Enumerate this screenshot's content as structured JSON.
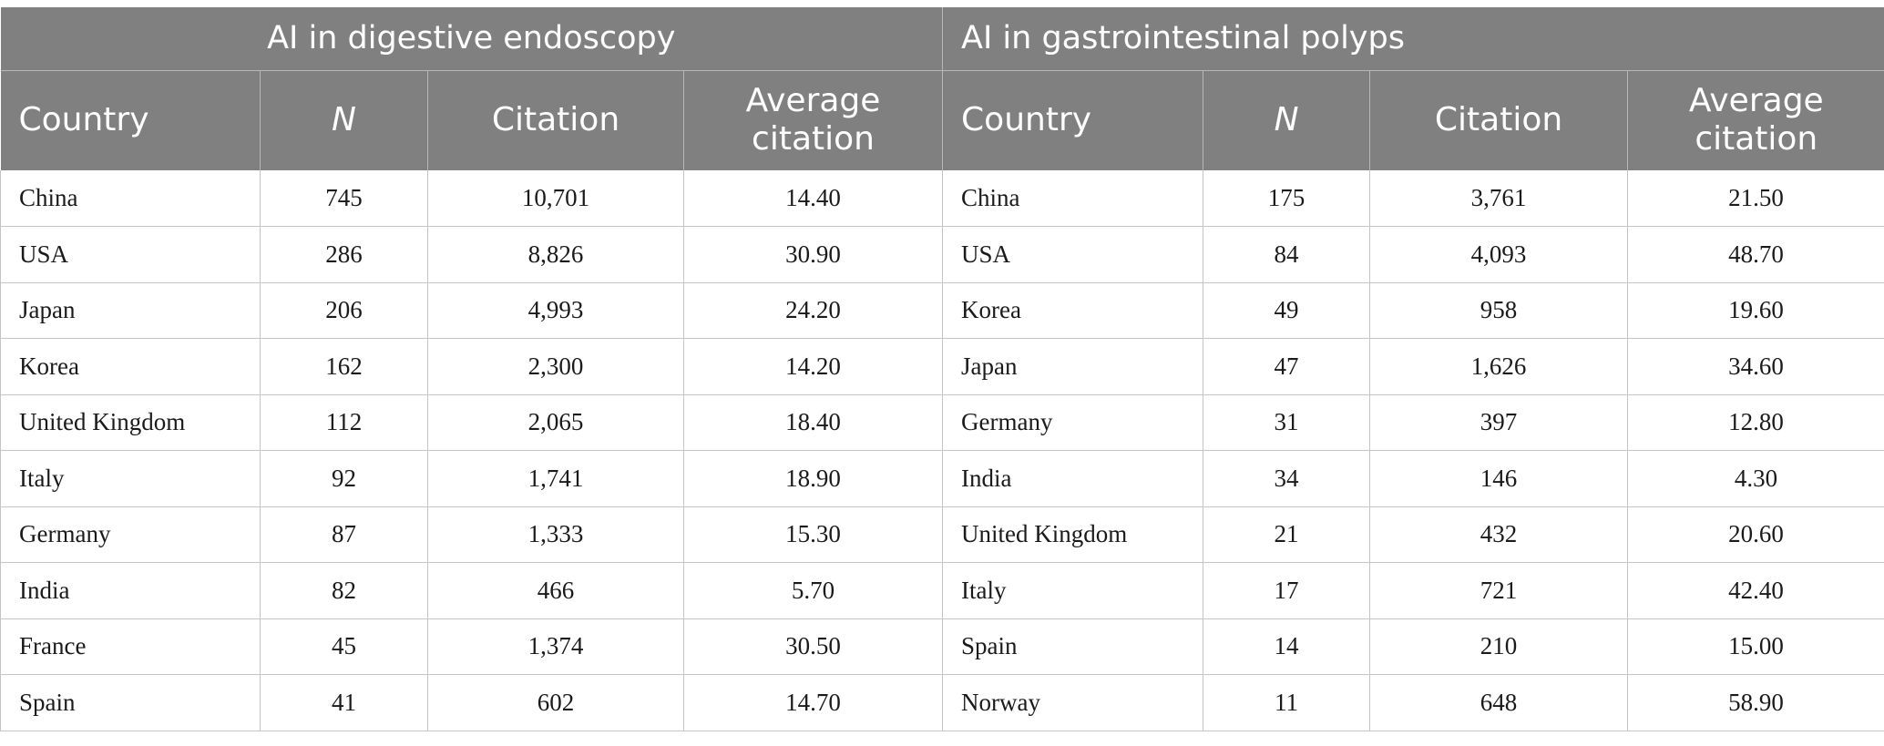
{
  "groups": [
    {
      "label": "AI in digestive endoscopy"
    },
    {
      "label": "AI in gastrointestinal polyps"
    }
  ],
  "columns": {
    "country": "Country",
    "n": "N",
    "citation": "Citation",
    "average_citation": "Average citation"
  },
  "rows": [
    {
      "c1": "China",
      "n1": "745",
      "cit1": "10,701",
      "avg1": "14.40",
      "c2": "China",
      "n2": "175",
      "cit2": "3,761",
      "avg2": "21.50"
    },
    {
      "c1": "USA",
      "n1": "286",
      "cit1": "8,826",
      "avg1": "30.90",
      "c2": "USA",
      "n2": "84",
      "cit2": "4,093",
      "avg2": "48.70"
    },
    {
      "c1": "Japan",
      "n1": "206",
      "cit1": "4,993",
      "avg1": "24.20",
      "c2": "Korea",
      "n2": "49",
      "cit2": "958",
      "avg2": "19.60"
    },
    {
      "c1": "Korea",
      "n1": "162",
      "cit1": "2,300",
      "avg1": "14.20",
      "c2": "Japan",
      "n2": "47",
      "cit2": "1,626",
      "avg2": "34.60"
    },
    {
      "c1": "United Kingdom",
      "n1": "112",
      "cit1": "2,065",
      "avg1": "18.40",
      "c2": "Germany",
      "n2": "31",
      "cit2": "397",
      "avg2": "12.80"
    },
    {
      "c1": "Italy",
      "n1": "92",
      "cit1": "1,741",
      "avg1": "18.90",
      "c2": "India",
      "n2": "34",
      "cit2": "146",
      "avg2": "4.30"
    },
    {
      "c1": "Germany",
      "n1": "87",
      "cit1": "1,333",
      "avg1": "15.30",
      "c2": "United Kingdom",
      "n2": "21",
      "cit2": "432",
      "avg2": "20.60"
    },
    {
      "c1": "India",
      "n1": "82",
      "cit1": "466",
      "avg1": "5.70",
      "c2": "Italy",
      "n2": "17",
      "cit2": "721",
      "avg2": "42.40"
    },
    {
      "c1": "France",
      "n1": "45",
      "cit1": "1,374",
      "avg1": "30.50",
      "c2": "Spain",
      "n2": "14",
      "cit2": "210",
      "avg2": "15.00"
    },
    {
      "c1": "Spain",
      "n1": "41",
      "cit1": "602",
      "avg1": "14.70",
      "c2": "Norway",
      "n2": "11",
      "cit2": "648",
      "avg2": "58.90"
    }
  ]
}
